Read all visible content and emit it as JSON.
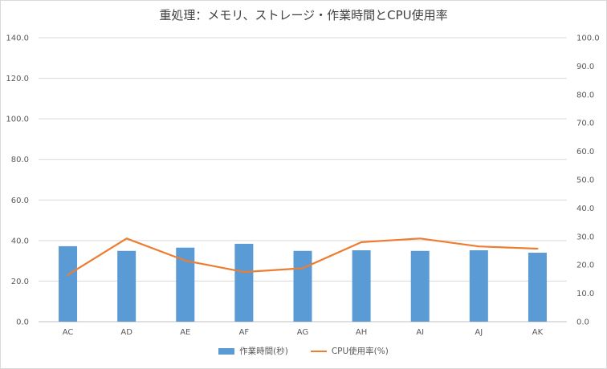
{
  "chart_data": {
    "type": "bar",
    "title": "重処理：メモリ、ストレージ・作業時間とCPU使用率",
    "categories": [
      "AC",
      "AD",
      "AE",
      "AF",
      "AG",
      "AH",
      "AI",
      "AJ",
      "AK"
    ],
    "series": [
      {
        "name": "作業時間(秒)",
        "type": "bar",
        "axis": "left",
        "color": "#5b9bd5",
        "values": [
          37.2,
          34.9,
          36.5,
          38.4,
          34.9,
          35.2,
          34.9,
          35.2,
          34.0
        ]
      },
      {
        "name": "CPU使用率(%)",
        "type": "line",
        "axis": "right",
        "color": "#ed7d31",
        "values": [
          16.5,
          29.3,
          21.5,
          17.5,
          18.8,
          28.0,
          29.3,
          26.5,
          25.7
        ]
      }
    ],
    "y_left": {
      "min": 0,
      "max": 140,
      "step": 20,
      "ticks": [
        "0.0",
        "20.0",
        "40.0",
        "60.0",
        "80.0",
        "100.0",
        "120.0",
        "140.0"
      ]
    },
    "y_right": {
      "min": 0,
      "max": 100,
      "step": 10,
      "ticks": [
        "0.0",
        "10.0",
        "20.0",
        "30.0",
        "40.0",
        "50.0",
        "60.0",
        "70.0",
        "80.0",
        "90.0",
        "100.0"
      ]
    },
    "grid": true,
    "legend_position": "bottom"
  }
}
